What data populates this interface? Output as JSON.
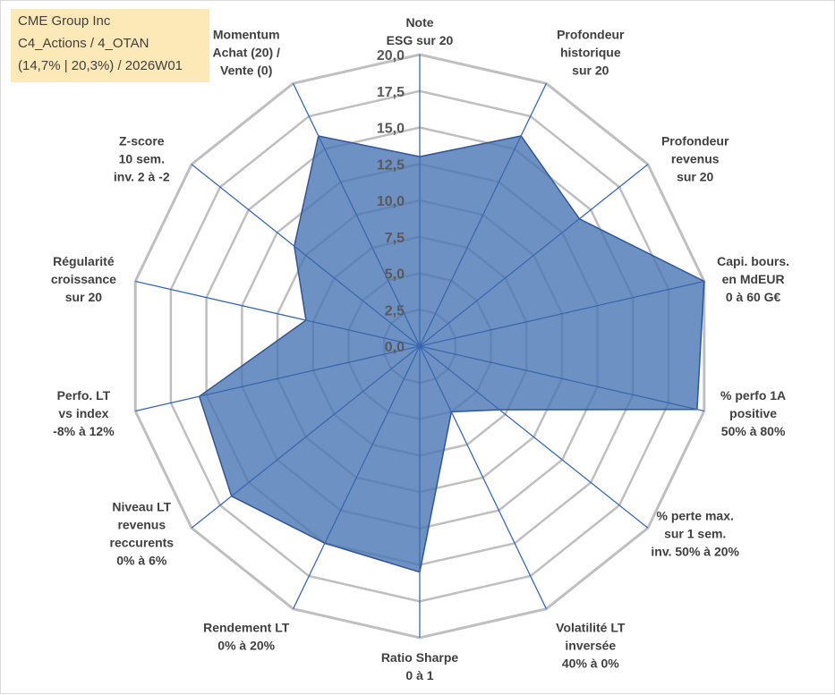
{
  "info_box": {
    "line1": "CME Group Inc",
    "line2": "C4_Actions / 4_OTAN",
    "line3": "(14,7% | 20,3%) / 2026W01"
  },
  "colors": {
    "fill": "#4a76b4",
    "stroke": "#2f5597",
    "grid": "#bfbfbf",
    "info_bg": "#fde8b8"
  },
  "chart_data": {
    "type": "radar",
    "title": "",
    "range": [
      0,
      20
    ],
    "ticks": [
      "0,0",
      "2,5",
      "5,0",
      "7,5",
      "10,0",
      "12,5",
      "15,0",
      "17,5",
      "20,0"
    ],
    "axes": [
      {
        "label": [
          "Note",
          "ESG sur 20"
        ],
        "value": 13
      },
      {
        "label": [
          "Profondeur",
          "historique",
          "sur 20"
        ],
        "value": 16
      },
      {
        "label": [
          "Profondeur",
          "revenus",
          "sur 20"
        ],
        "value": 14
      },
      {
        "label": [
          "Capi. bours.",
          "en MdEUR",
          "0 à 60 G€"
        ],
        "value": 20
      },
      {
        "label": [
          "% perfo 1A",
          "positive",
          "50% à 80%"
        ],
        "value": 19.5
      },
      {
        "label": [
          "% perte max.",
          "sur 1 sem.",
          "inv. 50% à 20%"
        ],
        "value": 7
      },
      {
        "label": [
          "Volatilité LT",
          "inversée",
          "40% à 0%"
        ],
        "value": 5
      },
      {
        "label": [
          "Ratio Sharpe",
          "0 à 1"
        ],
        "value": 15.5
      },
      {
        "label": [
          "Rendement LT",
          "0% à 20%"
        ],
        "value": 15
      },
      {
        "label": [
          "Niveau LT",
          "revenus",
          "reccurents",
          "0% à 6%"
        ],
        "value": 16.5
      },
      {
        "label": [
          "Perfo. LT",
          "vs index",
          "-8% à 12%"
        ],
        "value": 15.5
      },
      {
        "label": [
          "Régularité",
          "croissance",
          "sur 20"
        ],
        "value": 8
      },
      {
        "label": [
          "Z-score",
          "10 sem.",
          "inv. 2 à -2"
        ],
        "value": 11
      },
      {
        "label": [
          "Momentum",
          "Achat (20) /",
          "Vente (0)"
        ],
        "value": 16
      }
    ]
  }
}
